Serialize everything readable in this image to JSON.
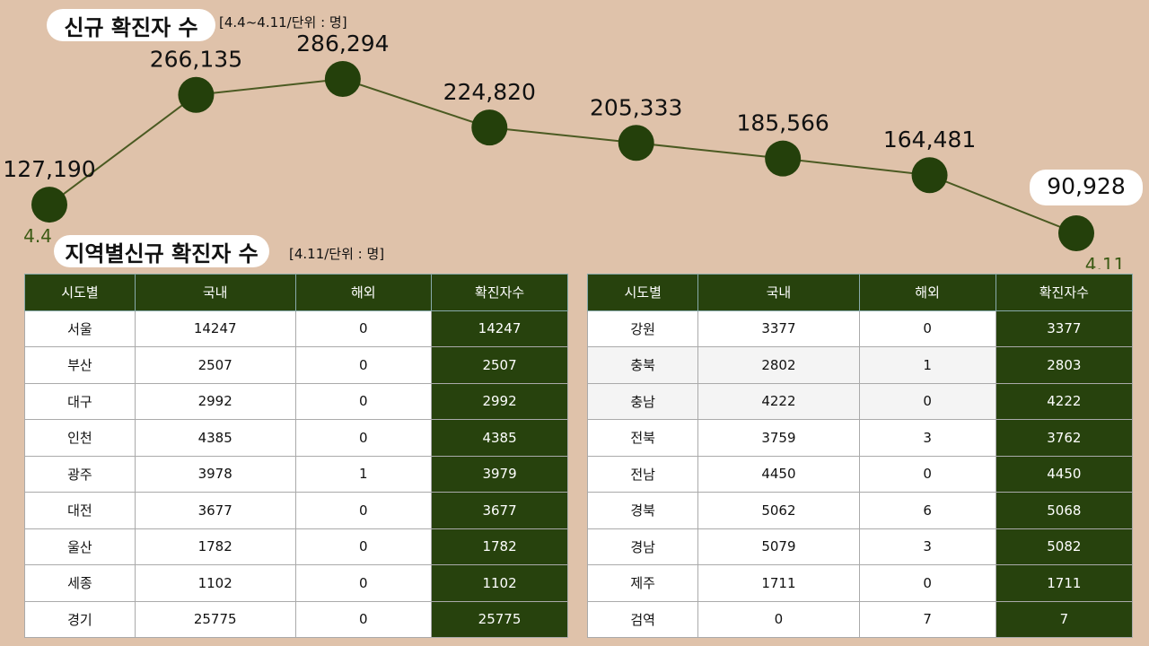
{
  "chart_data": {
    "type": "line",
    "title": "신규 확진자 수",
    "subtitle": "[4.4~4.11/단위 : 명]",
    "categories": [
      "4.4",
      null,
      null,
      null,
      null,
      null,
      null,
      "4.11"
    ],
    "values": [
      127190,
      266135,
      286294,
      224820,
      205333,
      185566,
      164481,
      90928
    ],
    "value_labels": [
      "127,190",
      "266,135",
      "286,294",
      "224,820",
      "205,333",
      "185,566",
      "164,481",
      "90,928"
    ],
    "color": "#24400b",
    "line_color": "#4b5a22"
  },
  "region_section": {
    "title": "지역별신규 확진자 수",
    "subtitle": "[4.11/단위 : 명]"
  },
  "tables": [
    {
      "header": [
        "시도별",
        "국내",
        "해외",
        "확진자수"
      ],
      "rows": [
        [
          "서울",
          14247,
          0,
          14247
        ],
        [
          "부산",
          2507,
          0,
          2507
        ],
        [
          "대구",
          2992,
          0,
          2992
        ],
        [
          "인천",
          4385,
          0,
          4385
        ],
        [
          "광주",
          3978,
          1,
          3979
        ],
        [
          "대전",
          3677,
          0,
          3677
        ],
        [
          "울산",
          1782,
          0,
          1782
        ],
        [
          "세종",
          1102,
          0,
          1102
        ],
        [
          "경기",
          25775,
          0,
          25775
        ]
      ]
    },
    {
      "header": [
        "시도별",
        "국내",
        "해외",
        "확진자수"
      ],
      "rows": [
        [
          "강원",
          3377,
          0,
          3377
        ],
        [
          "충북",
          2802,
          1,
          2803
        ],
        [
          "충남",
          4222,
          0,
          4222
        ],
        [
          "전북",
          3759,
          3,
          3762
        ],
        [
          "전남",
          4450,
          0,
          4450
        ],
        [
          "경북",
          5062,
          6,
          5068
        ],
        [
          "경남",
          5079,
          3,
          5082
        ],
        [
          "제주",
          1711,
          0,
          1711
        ],
        [
          "검역",
          0,
          7,
          7
        ]
      ]
    }
  ]
}
